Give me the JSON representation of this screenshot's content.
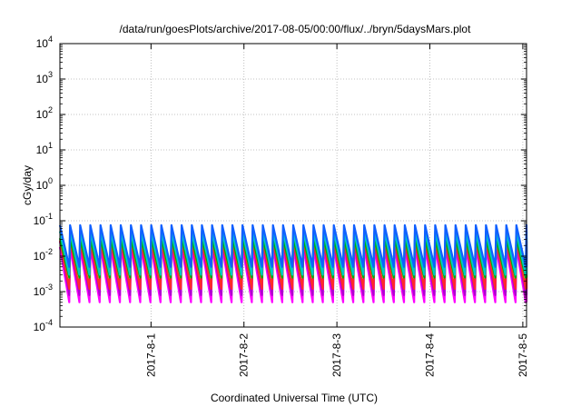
{
  "chart_data": {
    "type": "line",
    "title": "/data/run/goesPlots/archive/2017-08-05/00:00/flux/../bryn/5daysMars.plot",
    "xlabel": "Coordinated Universal Time (UTC)",
    "ylabel": "cGy/day",
    "yscale": "log",
    "ylim": [
      0.0001,
      10000
    ],
    "xlim_days": [
      -0.98,
      4.04
    ],
    "y_ticks": [
      {
        "base": "10",
        "exp": "-4"
      },
      {
        "base": "10",
        "exp": "-3"
      },
      {
        "base": "10",
        "exp": "-2"
      },
      {
        "base": "10",
        "exp": "-1"
      },
      {
        "base": "10",
        "exp": "0"
      },
      {
        "base": "10",
        "exp": "1"
      },
      {
        "base": "10",
        "exp": "2"
      },
      {
        "base": "10",
        "exp": "3"
      },
      {
        "base": "10",
        "exp": "4"
      }
    ],
    "x_ticks": [
      "2017-8-1",
      "2017-8-2",
      "2017-8-3",
      "2017-8-4",
      "2017-8-5"
    ],
    "grid": true,
    "sawtooth_cycles": 46,
    "series": [
      {
        "color": "#ff00ff",
        "peak": 0.018,
        "trough": 0.0005
      },
      {
        "color": "#b000d0",
        "peak": 0.026,
        "trough": 0.0008
      },
      {
        "color": "#ff2a2a",
        "peak": 0.028,
        "trough": 0.0012
      },
      {
        "color": "#00b000",
        "peak": 0.032,
        "trough": 0.0025
      },
      {
        "color": "#00c8c8",
        "peak": 0.05,
        "trough": 0.003
      },
      {
        "color": "#1060ff",
        "peak": 0.075,
        "trough": 0.005
      }
    ]
  }
}
